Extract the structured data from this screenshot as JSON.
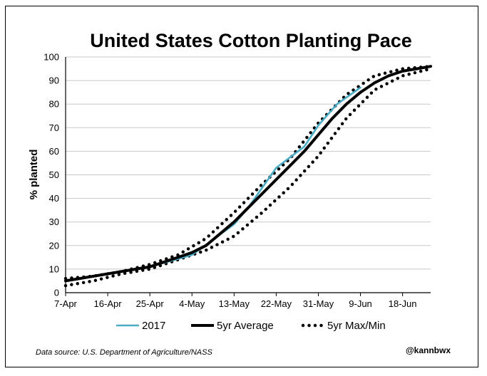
{
  "chart_data": {
    "type": "line",
    "title": "United States Cotton Planting Pace",
    "xlabel": "",
    "ylabel": "% planted",
    "ylim": [
      0,
      100
    ],
    "yticks": [
      0,
      10,
      20,
      30,
      40,
      50,
      60,
      70,
      80,
      90,
      100
    ],
    "xticks": [
      "7-Apr",
      "16-Apr",
      "25-Apr",
      "4-May",
      "13-May",
      "22-May",
      "31-May",
      "9-Jun",
      "18-Jun"
    ],
    "grid": "horizontal",
    "legend_position": "bottom",
    "source_note": "Data source: U.S. Department of Agriculture/NASS",
    "handle": "@kannbwx",
    "series": [
      {
        "name": "2017",
        "style": "solid",
        "color": "#4bacc6",
        "points": [
          {
            "x": "7-Apr",
            "y": 5
          },
          {
            "x": "16-Apr",
            "y": 8
          },
          {
            "x": "25-Apr",
            "y": 11
          },
          {
            "x": "4-May",
            "y": 16
          },
          {
            "x": "13-May",
            "y": 29
          },
          {
            "x": "16-May",
            "y": 36
          },
          {
            "x": "22-May",
            "y": 53
          },
          {
            "x": "28-May",
            "y": 62
          },
          {
            "x": "31-May",
            "y": 71
          },
          {
            "x": "4-Jun",
            "y": 80
          },
          {
            "x": "9-Jun",
            "y": 87
          }
        ]
      },
      {
        "name": "5yr Average",
        "style": "solid-thick",
        "color": "#000000",
        "points": [
          {
            "x": "7-Apr",
            "y": 5
          },
          {
            "x": "10-Apr",
            "y": 6
          },
          {
            "x": "13-Apr",
            "y": 7
          },
          {
            "x": "16-Apr",
            "y": 8
          },
          {
            "x": "19-Apr",
            "y": 9
          },
          {
            "x": "22-Apr",
            "y": 10
          },
          {
            "x": "25-Apr",
            "y": 11
          },
          {
            "x": "28-Apr",
            "y": 13
          },
          {
            "x": "1-May",
            "y": 15
          },
          {
            "x": "4-May",
            "y": 17
          },
          {
            "x": "7-May",
            "y": 20
          },
          {
            "x": "10-May",
            "y": 25
          },
          {
            "x": "13-May",
            "y": 30
          },
          {
            "x": "16-May",
            "y": 36
          },
          {
            "x": "19-May",
            "y": 42
          },
          {
            "x": "22-May",
            "y": 48
          },
          {
            "x": "25-May",
            "y": 54
          },
          {
            "x": "28-May",
            "y": 60
          },
          {
            "x": "31-May",
            "y": 67
          },
          {
            "x": "3-Jun",
            "y": 74
          },
          {
            "x": "6-Jun",
            "y": 80
          },
          {
            "x": "9-Jun",
            "y": 85
          },
          {
            "x": "12-Jun",
            "y": 89
          },
          {
            "x": "15-Jun",
            "y": 92
          },
          {
            "x": "18-Jun",
            "y": 94
          },
          {
            "x": "21-Jun",
            "y": 95
          },
          {
            "x": "24-Jun",
            "y": 96
          }
        ]
      },
      {
        "name": "5yr Max/Min",
        "style": "dotted",
        "color": "#000000",
        "subseries": [
          {
            "points": [
              {
                "x": "7-Apr",
                "y": 6
              },
              {
                "x": "13-Apr",
                "y": 7
              },
              {
                "x": "19-Apr",
                "y": 9
              },
              {
                "x": "25-Apr",
                "y": 12
              },
              {
                "x": "1-May",
                "y": 16
              },
              {
                "x": "7-May",
                "y": 23
              },
              {
                "x": "13-May",
                "y": 34
              },
              {
                "x": "19-May",
                "y": 46
              },
              {
                "x": "25-May",
                "y": 57
              },
              {
                "x": "31-May",
                "y": 72
              },
              {
                "x": "6-Jun",
                "y": 84
              },
              {
                "x": "12-Jun",
                "y": 92
              },
              {
                "x": "18-Jun",
                "y": 95
              },
              {
                "x": "24-Jun",
                "y": 96
              }
            ]
          },
          {
            "points": [
              {
                "x": "7-Apr",
                "y": 3
              },
              {
                "x": "13-Apr",
                "y": 5
              },
              {
                "x": "19-Apr",
                "y": 8
              },
              {
                "x": "25-Apr",
                "y": 10
              },
              {
                "x": "1-May",
                "y": 14
              },
              {
                "x": "7-May",
                "y": 18
              },
              {
                "x": "13-May",
                "y": 24
              },
              {
                "x": "19-May",
                "y": 34
              },
              {
                "x": "25-May",
                "y": 45
              },
              {
                "x": "31-May",
                "y": 58
              },
              {
                "x": "6-Jun",
                "y": 74
              },
              {
                "x": "12-Jun",
                "y": 86
              },
              {
                "x": "18-Jun",
                "y": 92
              },
              {
                "x": "24-Jun",
                "y": 95
              }
            ]
          }
        ]
      }
    ]
  }
}
